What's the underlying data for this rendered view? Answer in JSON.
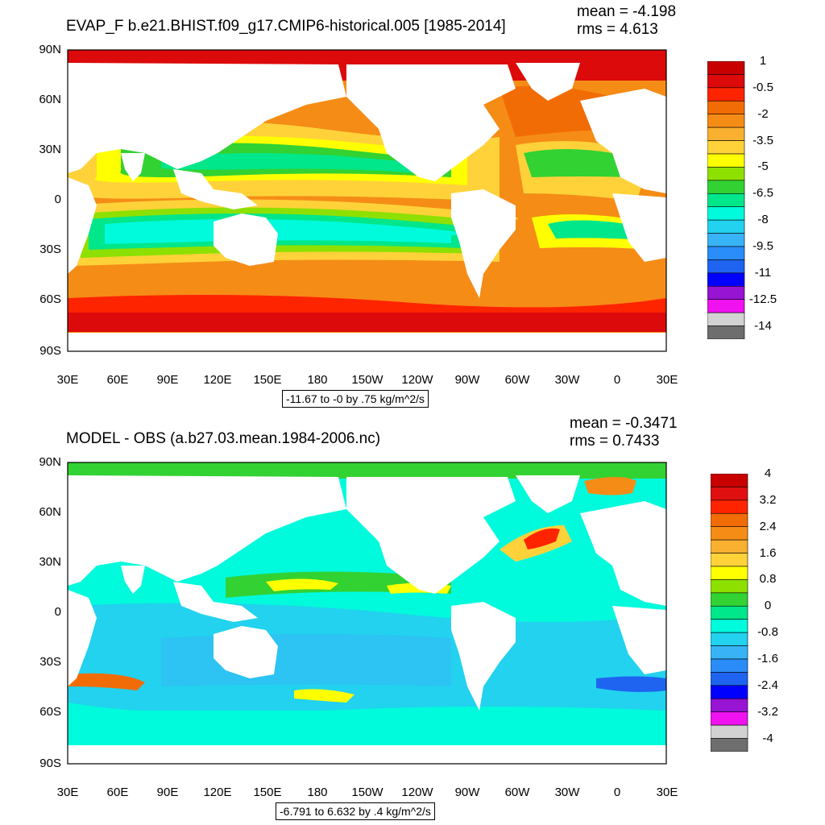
{
  "panels": [
    {
      "title": "EVAP_F b.e21.BHIST.f09_g17.CMIP6-historical.005 [1985-2014]",
      "mean": "mean = -4.198",
      "rms": "rms = 4.613",
      "contour_info": "-11.67 to -0 by .75 kg/m^2/s",
      "y_ticks": [
        "90N",
        "60N",
        "30N",
        "0",
        "30S",
        "60S",
        "90S"
      ],
      "x_ticks": [
        "30E",
        "60E",
        "90E",
        "120E",
        "150E",
        "180",
        "150W",
        "120W",
        "90W",
        "60W",
        "30W",
        "0",
        "30E"
      ],
      "colorbar": {
        "labels": [
          "1",
          "-0.5",
          "-2",
          "-3.5",
          "-5",
          "-6.5",
          "-8",
          "-9.5",
          "-11",
          "-12.5",
          "-14"
        ],
        "colors": [
          "#c80000",
          "#dc0a0a",
          "#ff2400",
          "#f26c06",
          "#f58c16",
          "#f9b030",
          "#ffd23a",
          "#ffff00",
          "#8ee000",
          "#32d232",
          "#00e68a",
          "#00fadc",
          "#22d2ee",
          "#38b4f6",
          "#2a8cf8",
          "#1e64f0",
          "#0000ff",
          "#9614d2",
          "#f012f0",
          "#d2d2d2",
          "#6e6e6e"
        ]
      }
    },
    {
      "title": "MODEL - OBS (a.b27.03.mean.1984-2006.nc)",
      "mean": "mean = -0.3471",
      "rms": "rms = 0.7433",
      "contour_info": "-6.791 to 6.632 by .4 kg/m^2/s",
      "y_ticks": [
        "90N",
        "60N",
        "30N",
        "0",
        "30S",
        "60S",
        "90S"
      ],
      "x_ticks": [
        "30E",
        "60E",
        "90E",
        "120E",
        "150E",
        "180",
        "150W",
        "120W",
        "90W",
        "60W",
        "30W",
        "0",
        "30E"
      ],
      "colorbar": {
        "labels": [
          "4",
          "3.2",
          "2.4",
          "1.6",
          "0.8",
          "0",
          "-0.8",
          "-1.6",
          "-2.4",
          "-3.2",
          "-4"
        ],
        "colors": [
          "#c80000",
          "#e01010",
          "#ff2400",
          "#f26c06",
          "#f58c16",
          "#f9b030",
          "#ffd23a",
          "#ffff00",
          "#8ee000",
          "#32d232",
          "#00e68a",
          "#00fadc",
          "#22d2ee",
          "#38b4f6",
          "#2a8cf8",
          "#1e64f0",
          "#0000ff",
          "#9614d2",
          "#f012f0",
          "#d2d2d2",
          "#6e6e6e"
        ]
      }
    }
  ]
}
